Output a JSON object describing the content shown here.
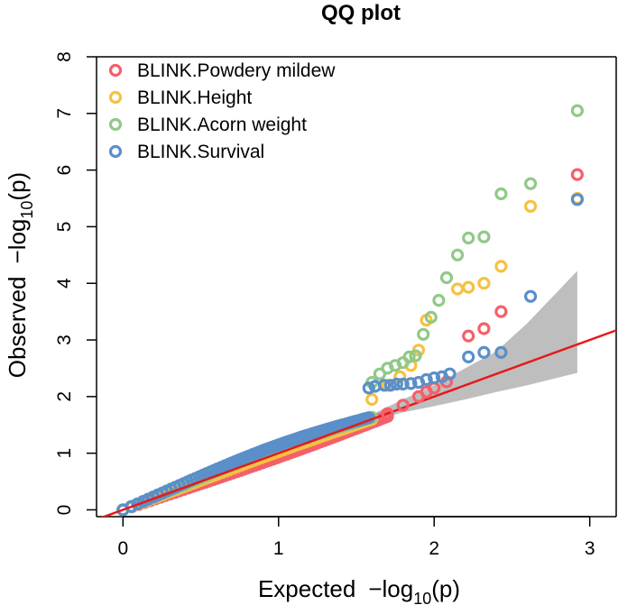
{
  "chart_data": {
    "type": "scatter",
    "title": "QQ plot",
    "xlabel": {
      "prefix": "Expected",
      "main": "−log",
      "sub": "10",
      "paren": "(p)"
    },
    "ylabel": {
      "prefix": "Observed",
      "main": "−log",
      "sub": "10",
      "paren": "(p)"
    },
    "xlim": [
      -0.17,
      3.17
    ],
    "ylim": [
      -0.12,
      8.0
    ],
    "xticks": [
      0,
      1,
      2,
      3
    ],
    "yticks": [
      0,
      1,
      2,
      3,
      4,
      5,
      6,
      7,
      8
    ],
    "grid": false,
    "legend_position": "top-left",
    "reference_line": {
      "slope": 1,
      "intercept": 0,
      "color": "#e41a1c"
    },
    "confidence_band": {
      "color": "#bebebe",
      "x": [
        1.55,
        1.8,
        2.0,
        2.2,
        2.4,
        2.6,
        2.92
      ],
      "lower": [
        1.53,
        1.72,
        1.83,
        1.95,
        2.08,
        2.2,
        2.42
      ],
      "upper": [
        1.62,
        1.95,
        2.2,
        2.5,
        2.8,
        3.3,
        4.22
      ]
    },
    "series": [
      {
        "name": "BLINK.Powdery mildew",
        "color": "#f4606a",
        "x": [
          1.7,
          1.8,
          1.9,
          1.95,
          2.0,
          2.08,
          2.22,
          2.32,
          2.43,
          2.92
        ],
        "y": [
          1.7,
          1.85,
          2.0,
          2.08,
          2.15,
          2.26,
          3.07,
          3.2,
          3.5,
          5.92
        ]
      },
      {
        "name": "BLINK.Height",
        "color": "#f6c141",
        "x": [
          1.6,
          1.7,
          1.78,
          1.85,
          1.9,
          1.95,
          2.15,
          2.22,
          2.32,
          2.43,
          2.62,
          2.92
        ],
        "y": [
          1.95,
          2.2,
          2.35,
          2.55,
          2.82,
          3.35,
          3.9,
          3.93,
          4.0,
          4.3,
          5.36,
          5.5
        ]
      },
      {
        "name": "BLINK.Acorn weight",
        "color": "#90c987",
        "x": [
          1.6,
          1.65,
          1.7,
          1.75,
          1.8,
          1.84,
          1.88,
          1.93,
          1.98,
          2.03,
          2.08,
          2.15,
          2.22,
          2.32,
          2.43,
          2.62,
          2.92
        ],
        "y": [
          2.25,
          2.4,
          2.5,
          2.55,
          2.6,
          2.7,
          2.72,
          3.1,
          3.4,
          3.7,
          4.1,
          4.5,
          4.8,
          4.82,
          5.58,
          5.76,
          7.05
        ]
      },
      {
        "name": "BLINK.Survival",
        "color": "#5a8fc9",
        "x": [
          1.58,
          1.62,
          1.68,
          1.72,
          1.76,
          1.8,
          1.85,
          1.9,
          1.95,
          2.0,
          2.05,
          2.1,
          2.22,
          2.32,
          2.43,
          2.62,
          2.92
        ],
        "y": [
          2.15,
          2.18,
          2.2,
          2.2,
          2.22,
          2.22,
          2.23,
          2.25,
          2.3,
          2.33,
          2.35,
          2.4,
          2.7,
          2.78,
          2.78,
          3.77,
          5.48
        ]
      }
    ],
    "bulk_points": {
      "description": "dense overlapping points near the diagonal",
      "series": [
        {
          "name": "BLINK.Powdery mildew",
          "color": "#f4606a",
          "x_max": 1.7,
          "slope": 0.97,
          "curve": -0.04
        },
        {
          "name": "BLINK.Height",
          "color": "#f6c141",
          "x_max": 1.6,
          "slope": 1.0,
          "curve": 0.03
        },
        {
          "name": "BLINK.Acorn weight",
          "color": "#90c987",
          "x_max": 1.6,
          "slope": 1.02,
          "curve": 0.08
        },
        {
          "name": "BLINK.Survival",
          "color": "#5a8fc9",
          "x_max": 1.58,
          "slope": 1.03,
          "curve": 0.12
        }
      ]
    }
  }
}
